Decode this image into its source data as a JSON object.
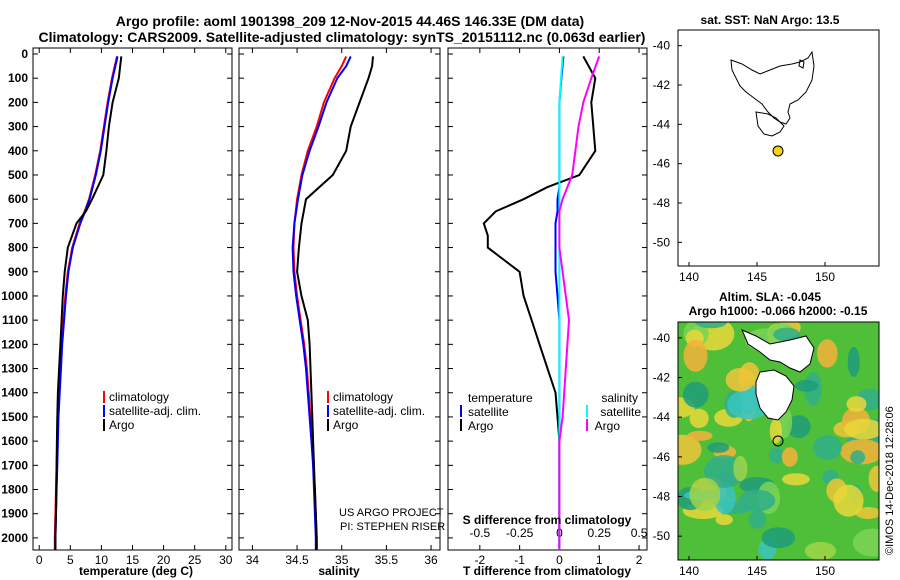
{
  "header": {
    "line1": "Argo profile: aoml 1901398_209 12-Nov-2015 44.46S 146.33E (DM data)",
    "line2": "Climatology: CARS2009. Satellite-adjusted climatology: synTS_20151112.nc (0.063d earlier)"
  },
  "colors": {
    "climatology": "#ff0000",
    "satellite": "#0000ff",
    "argo": "#000000",
    "sal_satellite": "#00ffff",
    "sal_argo": "#ff00ff"
  },
  "chart_data": [
    {
      "type": "line",
      "xlabel": "temperature (deg C)",
      "xticks": [
        "0",
        "5",
        "10",
        "15",
        "20",
        "25",
        "30"
      ],
      "xlim": [
        -1,
        31
      ],
      "ylim": [
        0,
        2050
      ],
      "yticks": [
        "0",
        "100",
        "200",
        "300",
        "400",
        "500",
        "600",
        "700",
        "800",
        "900",
        "1000",
        "1100",
        "1200",
        "1300",
        "1400",
        "1500",
        "1600",
        "1700",
        "1800",
        "1900",
        "2000"
      ],
      "depth": [
        10,
        100,
        200,
        300,
        400,
        500,
        600,
        650,
        700,
        800,
        900,
        1000,
        1100,
        1200,
        1300,
        1400,
        1500,
        1600,
        1700,
        1800,
        1900,
        2000,
        2050
      ],
      "series": [
        {
          "name": "climatology",
          "color": "#ff0000",
          "x": [
            12.5,
            11.7,
            11.0,
            10.4,
            9.8,
            9.0,
            8.0,
            7.3,
            6.5,
            5.3,
            4.6,
            4.2,
            3.9,
            3.6,
            3.4,
            3.2,
            3.0,
            2.9,
            2.8,
            2.7,
            2.6,
            2.5,
            2.5
          ]
        },
        {
          "name": "satellite-adj. clim.",
          "color": "#0000ff",
          "x": [
            12.6,
            11.8,
            11.1,
            10.5,
            9.9,
            9.1,
            8.1,
            7.4,
            6.6,
            5.4,
            4.7,
            4.3,
            4.0,
            3.7,
            3.5,
            3.3,
            3.1,
            3.0,
            2.9,
            2.8,
            2.7,
            2.6,
            2.6
          ]
        },
        {
          "name": "Argo",
          "color": "#000000",
          "x": [
            13.2,
            12.8,
            11.8,
            11.2,
            10.8,
            10.3,
            8.5,
            7.5,
            6.0,
            4.6,
            4.1,
            3.8,
            3.6,
            3.4,
            3.2,
            3.0,
            2.9,
            2.85,
            2.8,
            2.75,
            2.7,
            2.6,
            2.6
          ]
        }
      ],
      "legend": [
        "climatology",
        "satellite-adj. clim.",
        "Argo"
      ]
    },
    {
      "type": "line",
      "xlabel": "salinity",
      "xticks": [
        "34",
        "34.5",
        "35",
        "35.5",
        "36"
      ],
      "xlim": [
        33.85,
        36.1
      ],
      "ylim": [
        0,
        2050
      ],
      "depth": [
        10,
        50,
        100,
        200,
        300,
        400,
        500,
        600,
        700,
        800,
        900,
        1000,
        1100,
        1200,
        1300,
        1400,
        1500,
        1600,
        1700,
        1800,
        1900,
        2000,
        2050
      ],
      "series": [
        {
          "name": "climatology",
          "color": "#ff0000",
          "x": [
            35.05,
            35.0,
            34.92,
            34.8,
            34.72,
            34.62,
            34.55,
            34.5,
            34.47,
            34.46,
            34.47,
            34.5,
            34.54,
            34.58,
            34.61,
            34.63,
            34.65,
            34.67,
            34.68,
            34.7,
            34.71,
            34.72,
            34.72
          ]
        },
        {
          "name": "satellite-adj. clim.",
          "color": "#0000ff",
          "x": [
            35.1,
            35.05,
            34.95,
            34.83,
            34.74,
            34.64,
            34.56,
            34.51,
            34.47,
            34.45,
            34.46,
            34.49,
            34.53,
            34.57,
            34.6,
            34.62,
            34.64,
            34.66,
            34.68,
            34.69,
            34.7,
            34.71,
            34.71
          ]
        },
        {
          "name": "Argo",
          "color": "#000000",
          "x": [
            35.35,
            35.34,
            35.3,
            35.2,
            35.1,
            35.05,
            34.9,
            34.6,
            34.55,
            34.52,
            34.5,
            34.55,
            34.62,
            34.64,
            34.65,
            34.66,
            34.67,
            34.68,
            34.69,
            34.7,
            34.71,
            34.72,
            34.72
          ]
        }
      ],
      "legend": [
        "climatology",
        "satellite-adj. clim.",
        "Argo"
      ],
      "annotation": [
        "US ARGO PROJECT",
        "PI: STEPHEN RISER"
      ]
    },
    {
      "type": "line",
      "xlabel": "T difference from climatology",
      "secondary_xlabel": "S difference from climatology",
      "xticks": [
        "-2",
        "-1",
        "0",
        "1",
        "2"
      ],
      "xlim": [
        -2.8,
        2.2
      ],
      "secondary_xticks": [
        "-0.5",
        "-0.25",
        "0",
        "0.25",
        "0.5"
      ],
      "secondary_xlim": [
        -0.7,
        0.55
      ],
      "ylim": [
        0,
        2050
      ],
      "depth": [
        10,
        100,
        200,
        300,
        400,
        500,
        550,
        600,
        650,
        700,
        750,
        800,
        900,
        1000,
        1100,
        1200,
        1300,
        1400,
        1500,
        1600,
        1700,
        1800,
        1900,
        2000,
        2050
      ],
      "series": [
        {
          "name": "temperature satellite",
          "color": "#0000ff",
          "x": [
            0.1,
            0.05,
            0.0,
            0.0,
            0.0,
            0.0,
            0.0,
            -0.05,
            -0.05,
            -0.1,
            -0.1,
            -0.1,
            -0.1,
            -0.05,
            0.0,
            0.0,
            0.0,
            0.0,
            0.0,
            0.0,
            0.0,
            0.0,
            0.0,
            0.0,
            0.0
          ]
        },
        {
          "name": "temperature Argo",
          "color": "#000000",
          "x": [
            0.6,
            0.9,
            0.8,
            0.85,
            0.9,
            0.5,
            -0.3,
            -0.9,
            -1.6,
            -1.9,
            -1.8,
            -1.8,
            -1.0,
            -0.9,
            -0.7,
            -0.5,
            -0.3,
            -0.1,
            -0.05,
            0.0,
            0.0,
            0.0,
            0.0,
            0.0,
            0.0
          ]
        },
        {
          "name": "salinity satellite",
          "color": "#00ffff",
          "x": [
            0.02,
            0.01,
            0.0,
            0.0,
            0.0,
            0.0,
            0.0,
            0.0,
            0.0,
            0.0,
            0.0,
            0.0,
            0.0,
            0.0,
            0.0,
            0.0,
            0.0,
            0.0,
            0.0,
            0.0,
            0.0,
            0.0,
            0.0,
            0.0,
            0.0
          ]
        },
        {
          "name": "salinity Argo",
          "color": "#ff00ff",
          "x": [
            0.25,
            0.2,
            0.15,
            0.12,
            0.1,
            0.08,
            0.05,
            0.02,
            0.0,
            0.0,
            0.0,
            0.0,
            0.02,
            0.04,
            0.06,
            0.05,
            0.04,
            0.03,
            0.02,
            0.0,
            0.0,
            0.0,
            0.0,
            0.0,
            0.0
          ]
        }
      ],
      "legend_temperature": [
        "temperature",
        "satellite",
        "Argo"
      ],
      "legend_salinity": [
        "salinity",
        "satellite",
        "Argo"
      ]
    }
  ],
  "map_top": {
    "title": "sat. SST: NaN Argo: 13.5",
    "yticks": [
      "-40",
      "-42",
      "-44",
      "-46",
      "-48",
      "-50"
    ],
    "xticks": [
      "140",
      "145",
      "150"
    ],
    "argo_lat": -44.46,
    "argo_lon": 146.33
  },
  "map_bottom": {
    "title1": "Altim. SLA: -0.045",
    "title2": "Argo h1000: -0.066 h2000: -0.15",
    "yticks": [
      "-40",
      "-42",
      "-44",
      "-46",
      "-48",
      "-50"
    ],
    "xticks": [
      "140",
      "145",
      "150"
    ],
    "credit": "©IMOS 14-Dec-2018 12:28:06"
  }
}
